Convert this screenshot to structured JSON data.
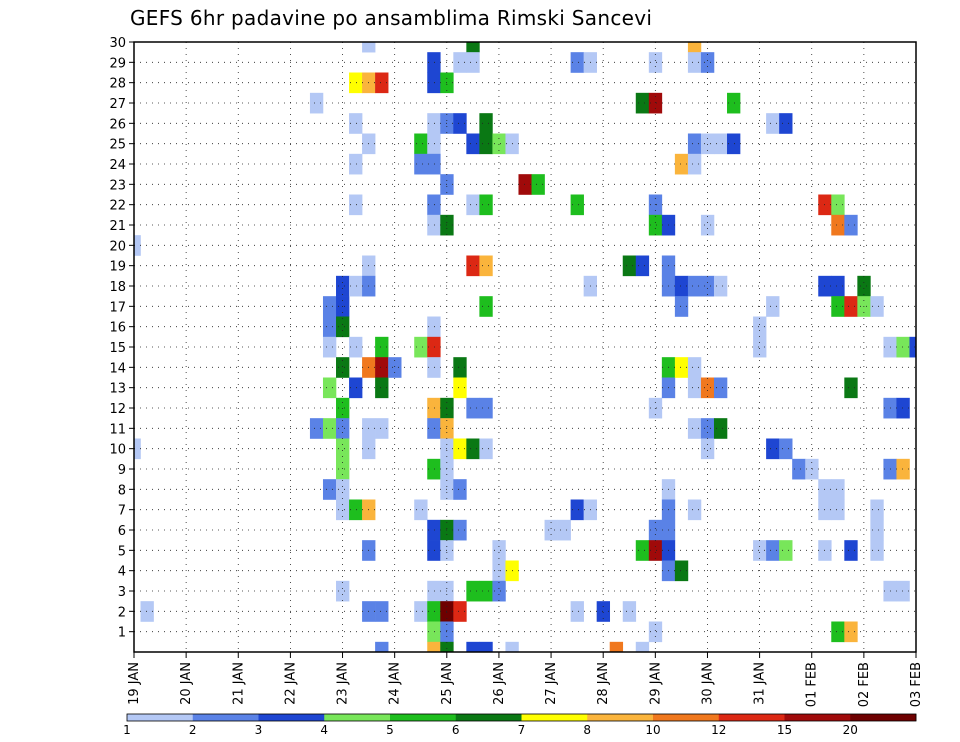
{
  "chart_data": {
    "type": "heatmap",
    "title": "GEFS 6hr padavine po ansamblima Rimski Sancevi",
    "xlabel": "",
    "ylabel": "",
    "x_tick_labels": [
      "19 JAN",
      "20 JAN",
      "21 JAN",
      "22 JAN",
      "23 JAN",
      "24 JAN",
      "25 JAN",
      "26 JAN",
      "27 JAN",
      "28 JAN",
      "29 JAN",
      "30 JAN",
      "31 JAN",
      "01 FEB",
      "02 FEB",
      "03 FEB"
    ],
    "y_tick_labels": [
      "1",
      "2",
      "3",
      "4",
      "5",
      "6",
      "7",
      "8",
      "9",
      "10",
      "11",
      "12",
      "13",
      "14",
      "15",
      "16",
      "17",
      "18",
      "19",
      "20",
      "21",
      "22",
      "23",
      "24",
      "25",
      "26",
      "27",
      "28",
      "29",
      "30"
    ],
    "ylim": [
      0,
      30
    ],
    "x_steps": 60,
    "steps_per_day": 4,
    "grid": true,
    "legend": {
      "placement": "bottom",
      "colors": [
        "#b4c8f5",
        "#5a82e6",
        "#1e46d2",
        "#78e65a",
        "#1ebe1e",
        "#0a7814",
        "#ffff00",
        "#fab43c",
        "#f0781e",
        "#dc2814",
        "#a00a0a",
        "#6e0000"
      ],
      "labels": [
        "1",
        "2",
        "3",
        "4",
        "5",
        "6",
        "7",
        "8",
        "10",
        "12",
        "15",
        "20"
      ]
    },
    "cells_format": "[time_step_6h, member, color_class]",
    "cells": [
      [
        0,
        20,
        0
      ],
      [
        0,
        10,
        0
      ],
      [
        1,
        2,
        0
      ],
      [
        14,
        27,
        0
      ],
      [
        14,
        11,
        1
      ],
      [
        15,
        17,
        1
      ],
      [
        15,
        16,
        1
      ],
      [
        15,
        15,
        0
      ],
      [
        15,
        13,
        3
      ],
      [
        15,
        11,
        3
      ],
      [
        15,
        8,
        1
      ],
      [
        16,
        18,
        2
      ],
      [
        16,
        17,
        2
      ],
      [
        16,
        16,
        5
      ],
      [
        16,
        14,
        5
      ],
      [
        16,
        12,
        4
      ],
      [
        16,
        11,
        1
      ],
      [
        16,
        10,
        3
      ],
      [
        16,
        9,
        3
      ],
      [
        16,
        8,
        0
      ],
      [
        16,
        7,
        0
      ],
      [
        16,
        3,
        0
      ],
      [
        17,
        28,
        6
      ],
      [
        17,
        26,
        0
      ],
      [
        17,
        24,
        0
      ],
      [
        17,
        22,
        0
      ],
      [
        17,
        18,
        0
      ],
      [
        17,
        15,
        0
      ],
      [
        17,
        13,
        2
      ],
      [
        17,
        7,
        4
      ],
      [
        18,
        30,
        0
      ],
      [
        18,
        28,
        7
      ],
      [
        18,
        25,
        0
      ],
      [
        18,
        19,
        0
      ],
      [
        18,
        18,
        1
      ],
      [
        18,
        14,
        8
      ],
      [
        18,
        11,
        0
      ],
      [
        18,
        10,
        0
      ],
      [
        18,
        7,
        7
      ],
      [
        18,
        5,
        1
      ],
      [
        18,
        2,
        1
      ],
      [
        19,
        28,
        9
      ],
      [
        19,
        15,
        4
      ],
      [
        19,
        14,
        10
      ],
      [
        19,
        13,
        5
      ],
      [
        19,
        11,
        0
      ],
      [
        19,
        2,
        1
      ],
      [
        19,
        0,
        1
      ],
      [
        20,
        14,
        1
      ],
      [
        22,
        25,
        4
      ],
      [
        22,
        24,
        1
      ],
      [
        22,
        15,
        3
      ],
      [
        22,
        7,
        0
      ],
      [
        22,
        2,
        0
      ],
      [
        23,
        29,
        2
      ],
      [
        23,
        28,
        2
      ],
      [
        23,
        26,
        0
      ],
      [
        23,
        25,
        0
      ],
      [
        23,
        24,
        1
      ],
      [
        23,
        22,
        1
      ],
      [
        23,
        21,
        0
      ],
      [
        23,
        16,
        0
      ],
      [
        23,
        15,
        9
      ],
      [
        23,
        14,
        0
      ],
      [
        23,
        12,
        7
      ],
      [
        23,
        11,
        1
      ],
      [
        23,
        9,
        4
      ],
      [
        23,
        6,
        2
      ],
      [
        23,
        5,
        2
      ],
      [
        23,
        3,
        0
      ],
      [
        23,
        2,
        4
      ],
      [
        23,
        1,
        3
      ],
      [
        23,
        0,
        7
      ],
      [
        24,
        28,
        4
      ],
      [
        24,
        26,
        1
      ],
      [
        24,
        23,
        1
      ],
      [
        24,
        21,
        5
      ],
      [
        24,
        12,
        5
      ],
      [
        24,
        11,
        7
      ],
      [
        24,
        10,
        0
      ],
      [
        24,
        9,
        0
      ],
      [
        24,
        8,
        0
      ],
      [
        24,
        6,
        5
      ],
      [
        24,
        5,
        0
      ],
      [
        24,
        3,
        0
      ],
      [
        24,
        2,
        11
      ],
      [
        24,
        1,
        1
      ],
      [
        24,
        0,
        5
      ],
      [
        25,
        29,
        0
      ],
      [
        25,
        26,
        2
      ],
      [
        25,
        14,
        5
      ],
      [
        25,
        13,
        6
      ],
      [
        25,
        10,
        6
      ],
      [
        25,
        8,
        1
      ],
      [
        25,
        6,
        1
      ],
      [
        25,
        2,
        9
      ],
      [
        26,
        30,
        5
      ],
      [
        26,
        29,
        0
      ],
      [
        26,
        25,
        2
      ],
      [
        26,
        22,
        0
      ],
      [
        26,
        19,
        9
      ],
      [
        26,
        12,
        1
      ],
      [
        26,
        10,
        5
      ],
      [
        26,
        3,
        4
      ],
      [
        26,
        0,
        2
      ],
      [
        27,
        26,
        5
      ],
      [
        27,
        25,
        5
      ],
      [
        27,
        22,
        4
      ],
      [
        27,
        19,
        7
      ],
      [
        27,
        17,
        4
      ],
      [
        27,
        12,
        1
      ],
      [
        27,
        10,
        0
      ],
      [
        27,
        3,
        4
      ],
      [
        27,
        0,
        2
      ],
      [
        28,
        25,
        3
      ],
      [
        28,
        5,
        0
      ],
      [
        28,
        4,
        0
      ],
      [
        28,
        3,
        1
      ],
      [
        29,
        25,
        0
      ],
      [
        29,
        4,
        6
      ],
      [
        29,
        0,
        0
      ],
      [
        30,
        23,
        10
      ],
      [
        31,
        23,
        4
      ],
      [
        32,
        6,
        0
      ],
      [
        33,
        6,
        0
      ],
      [
        34,
        29,
        1
      ],
      [
        34,
        22,
        4
      ],
      [
        34,
        7,
        2
      ],
      [
        34,
        2,
        0
      ],
      [
        35,
        29,
        0
      ],
      [
        35,
        18,
        0
      ],
      [
        35,
        7,
        0
      ],
      [
        36,
        2,
        2
      ],
      [
        37,
        0,
        8
      ],
      [
        38,
        19,
        5
      ],
      [
        38,
        2,
        0
      ],
      [
        39,
        27,
        5
      ],
      [
        39,
        19,
        2
      ],
      [
        39,
        5,
        4
      ],
      [
        39,
        0,
        0
      ],
      [
        40,
        29,
        0
      ],
      [
        40,
        27,
        10
      ],
      [
        40,
        22,
        1
      ],
      [
        40,
        21,
        4
      ],
      [
        40,
        12,
        0
      ],
      [
        40,
        6,
        1
      ],
      [
        40,
        5,
        10
      ],
      [
        40,
        1,
        0
      ],
      [
        41,
        21,
        2
      ],
      [
        41,
        19,
        1
      ],
      [
        41,
        18,
        1
      ],
      [
        41,
        14,
        4
      ],
      [
        41,
        13,
        1
      ],
      [
        41,
        8,
        0
      ],
      [
        41,
        7,
        1
      ],
      [
        41,
        6,
        1
      ],
      [
        41,
        5,
        2
      ],
      [
        41,
        4,
        1
      ],
      [
        42,
        24,
        7
      ],
      [
        42,
        18,
        2
      ],
      [
        42,
        17,
        1
      ],
      [
        42,
        14,
        6
      ],
      [
        42,
        4,
        5
      ],
      [
        43,
        30,
        7
      ],
      [
        43,
        29,
        0
      ],
      [
        43,
        25,
        1
      ],
      [
        43,
        24,
        0
      ],
      [
        43,
        18,
        1
      ],
      [
        43,
        14,
        0
      ],
      [
        43,
        13,
        0
      ],
      [
        43,
        11,
        0
      ],
      [
        43,
        7,
        0
      ],
      [
        44,
        29,
        1
      ],
      [
        44,
        25,
        0
      ],
      [
        44,
        21,
        0
      ],
      [
        44,
        18,
        1
      ],
      [
        44,
        13,
        8
      ],
      [
        44,
        11,
        1
      ],
      [
        44,
        10,
        0
      ],
      [
        45,
        25,
        0
      ],
      [
        45,
        18,
        0
      ],
      [
        45,
        13,
        1
      ],
      [
        45,
        11,
        5
      ],
      [
        46,
        27,
        4
      ],
      [
        46,
        25,
        2
      ],
      [
        48,
        16,
        0
      ],
      [
        48,
        15,
        0
      ],
      [
        48,
        5,
        0
      ],
      [
        49,
        26,
        0
      ],
      [
        49,
        17,
        0
      ],
      [
        49,
        10,
        2
      ],
      [
        49,
        5,
        1
      ],
      [
        50,
        26,
        2
      ],
      [
        50,
        10,
        1
      ],
      [
        50,
        5,
        3
      ],
      [
        51,
        9,
        1
      ],
      [
        52,
        9,
        0
      ],
      [
        53,
        22,
        9
      ],
      [
        53,
        18,
        2
      ],
      [
        53,
        8,
        0
      ],
      [
        53,
        7,
        0
      ],
      [
        53,
        5,
        0
      ],
      [
        54,
        22,
        3
      ],
      [
        54,
        21,
        8
      ],
      [
        54,
        18,
        2
      ],
      [
        54,
        17,
        4
      ],
      [
        54,
        8,
        0
      ],
      [
        54,
        7,
        0
      ],
      [
        54,
        1,
        4
      ],
      [
        55,
        21,
        1
      ],
      [
        55,
        17,
        9
      ],
      [
        55,
        13,
        5
      ],
      [
        55,
        5,
        2
      ],
      [
        55,
        1,
        7
      ],
      [
        56,
        18,
        5
      ],
      [
        56,
        17,
        3
      ],
      [
        57,
        17,
        0
      ],
      [
        57,
        7,
        0
      ],
      [
        57,
        6,
        0
      ],
      [
        57,
        5,
        0
      ],
      [
        58,
        15,
        0
      ],
      [
        58,
        12,
        1
      ],
      [
        58,
        9,
        1
      ],
      [
        58,
        3,
        0
      ],
      [
        59,
        15,
        3
      ],
      [
        59,
        12,
        2
      ],
      [
        59,
        9,
        7
      ],
      [
        59,
        3,
        0
      ],
      [
        60,
        15,
        2
      ]
    ]
  }
}
